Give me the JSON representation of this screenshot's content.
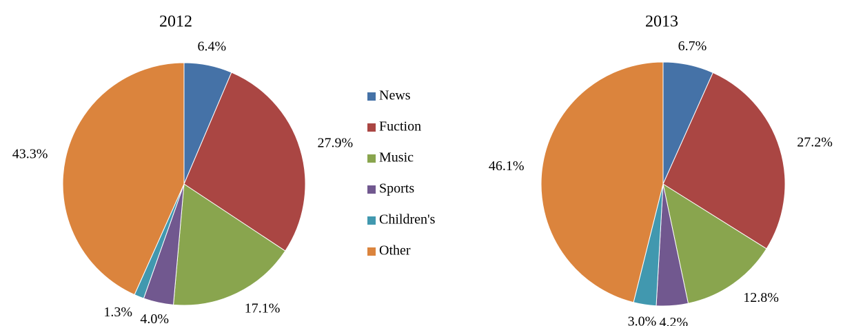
{
  "chart_data": [
    {
      "type": "pie",
      "title": "2012",
      "categories": [
        "News",
        "Fuction",
        "Music",
        "Sports",
        "Children's",
        "Other"
      ],
      "colors": [
        "#4572a7",
        "#aa4643",
        "#89a54e",
        "#71588f",
        "#4198af",
        "#db843d"
      ],
      "values": [
        6.4,
        27.9,
        17.1,
        4.0,
        1.3,
        43.3
      ],
      "value_labels": [
        "6.4%",
        "27.9%",
        "17.1%",
        "4.0%",
        "1.3%",
        "43.3%"
      ],
      "legend": "center"
    },
    {
      "type": "pie",
      "title": "2013",
      "values": [
        6.7,
        27.2,
        12.8,
        4.2,
        3.0,
        46.1
      ],
      "value_labels": [
        "6.7%",
        "27.2%",
        "12.8%",
        "4.2%",
        "3.0%",
        "46.1%"
      ]
    }
  ]
}
